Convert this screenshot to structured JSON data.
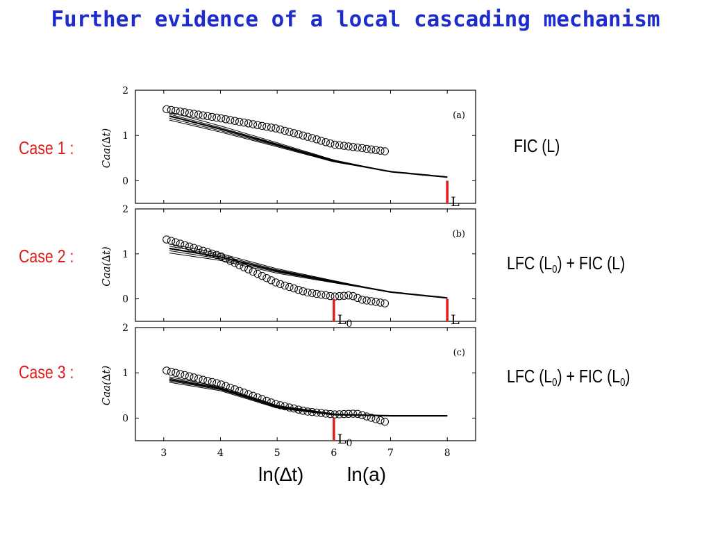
{
  "title": "Further evidence of a local cascading mechanism",
  "colors": {
    "title": "#1f2ccc",
    "case_label": "#e01b1b",
    "marker": "#e01b1b",
    "ink": "#000000"
  },
  "xlabel_left": "ln(∆t)",
  "xlabel_right": "ln(a)",
  "marker_labels": {
    "L": "L",
    "L0_base": "L",
    "L0_sub": "0"
  },
  "chart_data": [
    {
      "type": "scatter",
      "panel_tag": "(a)",
      "case_label": "Case 1 :",
      "right_label": {
        "pre": "FIC (L)",
        "sub1": "",
        "mid": "",
        "sub2": "",
        "post": ""
      },
      "ylabel": "Caa(∆t)",
      "xlim": [
        2.5,
        8.5
      ],
      "ylim": [
        -0.5,
        2
      ],
      "xticks": [
        3,
        4,
        5,
        6,
        7,
        8
      ],
      "yticks": [
        0,
        1,
        2
      ],
      "show_xtick_labels": false,
      "circles": {
        "x": [
          3.05,
          6.9
        ],
        "knots": [
          [
            3.05,
            1.58
          ],
          [
            4.0,
            1.38
          ],
          [
            5.0,
            1.15
          ],
          [
            5.6,
            0.95
          ],
          [
            6.0,
            0.8
          ],
          [
            6.5,
            0.72
          ],
          [
            6.9,
            0.65
          ]
        ]
      },
      "curves": {
        "x_start": 3.1,
        "x_end": 8.0,
        "knots": [
          [
            3.1,
            1.4
          ],
          [
            4.0,
            1.12
          ],
          [
            5.0,
            0.78
          ],
          [
            6.0,
            0.43
          ],
          [
            7.0,
            0.2
          ],
          [
            8.0,
            0.08
          ]
        ],
        "fan_offsets": [
          0.12,
          0.07,
          0.03,
          -0.02,
          -0.06
        ]
      },
      "markers": [
        {
          "x": 8.0,
          "label": "L",
          "sub": ""
        }
      ]
    },
    {
      "type": "scatter",
      "panel_tag": "(b)",
      "case_label": "Case 2 :",
      "right_label": {
        "pre": "LFC (L",
        "sub1": "0",
        "mid": ") + FIC (L)",
        "sub2": "",
        "post": ""
      },
      "ylabel": "Caa(∆t)",
      "xlim": [
        2.5,
        8.5
      ],
      "ylim": [
        -0.5,
        2
      ],
      "xticks": [
        3,
        4,
        5,
        6,
        7,
        8
      ],
      "yticks": [
        0,
        1,
        2
      ],
      "show_xtick_labels": false,
      "circles": {
        "x": [
          3.05,
          6.9
        ],
        "knots": [
          [
            3.05,
            1.32
          ],
          [
            4.0,
            0.95
          ],
          [
            4.5,
            0.65
          ],
          [
            5.0,
            0.35
          ],
          [
            5.5,
            0.15
          ],
          [
            6.0,
            0.05
          ],
          [
            6.3,
            0.08
          ],
          [
            6.5,
            -0.02
          ],
          [
            6.9,
            -0.1
          ]
        ]
      },
      "curves": {
        "x_start": 3.1,
        "x_end": 8.0,
        "knots": [
          [
            3.1,
            1.12
          ],
          [
            4.0,
            0.93
          ],
          [
            5.0,
            0.62
          ],
          [
            6.0,
            0.38
          ],
          [
            7.0,
            0.15
          ],
          [
            8.0,
            0.02
          ]
        ],
        "fan_offsets": [
          0.1,
          0.05,
          0.0,
          -0.05,
          -0.1
        ]
      },
      "markers": [
        {
          "x": 6.0,
          "label": "L",
          "sub": "0"
        },
        {
          "x": 8.0,
          "label": "L",
          "sub": ""
        }
      ]
    },
    {
      "type": "scatter",
      "panel_tag": "(c)",
      "case_label": "Case 3 :",
      "right_label": {
        "pre": "LFC (L",
        "sub1": "0",
        "mid": ") + FIC (L",
        "sub2": "0",
        "post": ")"
      },
      "ylabel": "Caa(∆t)",
      "xlim": [
        2.5,
        8.5
      ],
      "ylim": [
        -0.5,
        2
      ],
      "xticks": [
        3,
        4,
        5,
        6,
        7,
        8
      ],
      "yticks": [
        0,
        1,
        2
      ],
      "show_xtick_labels": true,
      "circles": {
        "x": [
          3.05,
          6.9
        ],
        "knots": [
          [
            3.05,
            1.05
          ],
          [
            4.0,
            0.75
          ],
          [
            5.0,
            0.3
          ],
          [
            5.5,
            0.15
          ],
          [
            6.0,
            0.08
          ],
          [
            6.4,
            0.1
          ],
          [
            6.9,
            -0.08
          ]
        ]
      },
      "curves": {
        "x_start": 3.1,
        "x_end": 8.0,
        "knots": [
          [
            3.1,
            0.85
          ],
          [
            4.0,
            0.65
          ],
          [
            5.0,
            0.25
          ],
          [
            6.0,
            0.08
          ],
          [
            7.0,
            0.05
          ],
          [
            8.0,
            0.05
          ]
        ],
        "fan_offsets": [
          0.06,
          0.03,
          0.0,
          -0.03,
          -0.06
        ]
      },
      "markers": [
        {
          "x": 6.0,
          "label": "L",
          "sub": "0"
        }
      ]
    }
  ]
}
